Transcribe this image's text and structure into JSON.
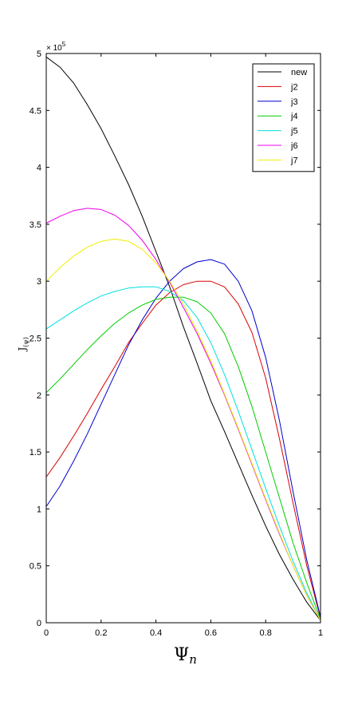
{
  "chart_data": {
    "type": "line",
    "xlabel": "Ψ",
    "xlabel_sub": "n",
    "ylabel": "J",
    "ylabel_sub": "(ψ)",
    "y_multiplier": "× 10",
    "y_exponent": "5",
    "xlim": [
      0,
      1
    ],
    "ylim": [
      0,
      5
    ],
    "x_ticks": [
      0,
      0.2,
      0.4,
      0.6,
      0.8,
      1
    ],
    "x_tick_labels": [
      "0",
      "0.2",
      "0.4",
      "0.6",
      "0.8",
      "1"
    ],
    "y_ticks": [
      0,
      0.5,
      1,
      1.5,
      2,
      2.5,
      3,
      3.5,
      4,
      4.5,
      5
    ],
    "y_tick_labels": [
      "0",
      "0.5",
      "1",
      "1.5",
      "2",
      "2.5",
      "3",
      "3.5",
      "4",
      "4.5",
      "5"
    ],
    "grid": false,
    "legend_position": "top-right",
    "series": [
      {
        "name": "new",
        "color": "#000000",
        "points": [
          [
            0,
            4.97
          ],
          [
            0.05,
            4.88
          ],
          [
            0.1,
            4.74
          ],
          [
            0.15,
            4.55
          ],
          [
            0.2,
            4.34
          ],
          [
            0.25,
            4.1
          ],
          [
            0.3,
            3.85
          ],
          [
            0.35,
            3.57
          ],
          [
            0.4,
            3.26
          ],
          [
            0.45,
            2.95
          ],
          [
            0.5,
            2.6
          ],
          [
            0.55,
            2.28
          ],
          [
            0.6,
            1.95
          ],
          [
            0.65,
            1.68
          ],
          [
            0.7,
            1.4
          ],
          [
            0.75,
            1.12
          ],
          [
            0.8,
            0.85
          ],
          [
            0.85,
            0.6
          ],
          [
            0.9,
            0.38
          ],
          [
            0.95,
            0.18
          ],
          [
            1,
            0.02
          ]
        ]
      },
      {
        "name": "j2",
        "color": "#dd0000",
        "points": [
          [
            0,
            1.28
          ],
          [
            0.05,
            1.45
          ],
          [
            0.1,
            1.64
          ],
          [
            0.15,
            1.84
          ],
          [
            0.2,
            2.05
          ],
          [
            0.25,
            2.25
          ],
          [
            0.3,
            2.46
          ],
          [
            0.35,
            2.63
          ],
          [
            0.4,
            2.79
          ],
          [
            0.45,
            2.9
          ],
          [
            0.5,
            2.97
          ],
          [
            0.55,
            3.0
          ],
          [
            0.6,
            3.0
          ],
          [
            0.65,
            2.95
          ],
          [
            0.7,
            2.8
          ],
          [
            0.75,
            2.55
          ],
          [
            0.8,
            2.15
          ],
          [
            0.85,
            1.62
          ],
          [
            0.9,
            1.05
          ],
          [
            0.95,
            0.5
          ],
          [
            1,
            0.04
          ]
        ]
      },
      {
        "name": "j3",
        "color": "#0000cc",
        "points": [
          [
            0,
            1.02
          ],
          [
            0.05,
            1.2
          ],
          [
            0.1,
            1.42
          ],
          [
            0.15,
            1.66
          ],
          [
            0.2,
            1.92
          ],
          [
            0.25,
            2.18
          ],
          [
            0.3,
            2.44
          ],
          [
            0.35,
            2.66
          ],
          [
            0.4,
            2.85
          ],
          [
            0.45,
            3.0
          ],
          [
            0.5,
            3.11
          ],
          [
            0.55,
            3.17
          ],
          [
            0.6,
            3.19
          ],
          [
            0.65,
            3.15
          ],
          [
            0.7,
            3.0
          ],
          [
            0.75,
            2.74
          ],
          [
            0.8,
            2.33
          ],
          [
            0.85,
            1.78
          ],
          [
            0.9,
            1.15
          ],
          [
            0.95,
            0.55
          ],
          [
            1,
            0.05
          ]
        ]
      },
      {
        "name": "j4",
        "color": "#00cc00",
        "points": [
          [
            0,
            2.02
          ],
          [
            0.05,
            2.14
          ],
          [
            0.1,
            2.27
          ],
          [
            0.15,
            2.4
          ],
          [
            0.2,
            2.52
          ],
          [
            0.25,
            2.63
          ],
          [
            0.3,
            2.72
          ],
          [
            0.35,
            2.79
          ],
          [
            0.4,
            2.84
          ],
          [
            0.45,
            2.86
          ],
          [
            0.5,
            2.86
          ],
          [
            0.55,
            2.82
          ],
          [
            0.6,
            2.72
          ],
          [
            0.65,
            2.54
          ],
          [
            0.7,
            2.25
          ],
          [
            0.75,
            1.9
          ],
          [
            0.8,
            1.5
          ],
          [
            0.85,
            1.1
          ],
          [
            0.9,
            0.7
          ],
          [
            0.95,
            0.35
          ],
          [
            1,
            0.03
          ]
        ]
      },
      {
        "name": "j5",
        "color": "#00e0e0",
        "points": [
          [
            0,
            2.58
          ],
          [
            0.05,
            2.66
          ],
          [
            0.1,
            2.74
          ],
          [
            0.15,
            2.81
          ],
          [
            0.2,
            2.87
          ],
          [
            0.25,
            2.91
          ],
          [
            0.3,
            2.94
          ],
          [
            0.35,
            2.95
          ],
          [
            0.4,
            2.95
          ],
          [
            0.45,
            2.91
          ],
          [
            0.5,
            2.83
          ],
          [
            0.55,
            2.68
          ],
          [
            0.6,
            2.46
          ],
          [
            0.65,
            2.18
          ],
          [
            0.7,
            1.86
          ],
          [
            0.75,
            1.52
          ],
          [
            0.8,
            1.18
          ],
          [
            0.85,
            0.85
          ],
          [
            0.9,
            0.54
          ],
          [
            0.95,
            0.26
          ],
          [
            1,
            0.02
          ]
        ]
      },
      {
        "name": "j6",
        "color": "#ee00ee",
        "points": [
          [
            0,
            3.51
          ],
          [
            0.05,
            3.57
          ],
          [
            0.1,
            3.62
          ],
          [
            0.15,
            3.64
          ],
          [
            0.2,
            3.63
          ],
          [
            0.25,
            3.58
          ],
          [
            0.3,
            3.49
          ],
          [
            0.35,
            3.36
          ],
          [
            0.4,
            3.19
          ],
          [
            0.45,
            2.99
          ],
          [
            0.5,
            2.77
          ],
          [
            0.55,
            2.54
          ],
          [
            0.6,
            2.28
          ],
          [
            0.65,
            2.0
          ],
          [
            0.7,
            1.7
          ],
          [
            0.75,
            1.39
          ],
          [
            0.8,
            1.08
          ],
          [
            0.85,
            0.78
          ],
          [
            0.9,
            0.5
          ],
          [
            0.95,
            0.24
          ],
          [
            1,
            0.02
          ]
        ]
      },
      {
        "name": "j7",
        "color": "#eeee00",
        "points": [
          [
            0,
            3.0
          ],
          [
            0.05,
            3.12
          ],
          [
            0.1,
            3.22
          ],
          [
            0.15,
            3.3
          ],
          [
            0.2,
            3.35
          ],
          [
            0.25,
            3.37
          ],
          [
            0.3,
            3.35
          ],
          [
            0.35,
            3.28
          ],
          [
            0.4,
            3.16
          ],
          [
            0.45,
            3.0
          ],
          [
            0.5,
            2.8
          ],
          [
            0.55,
            2.56
          ],
          [
            0.6,
            2.3
          ],
          [
            0.65,
            2.01
          ],
          [
            0.7,
            1.71
          ],
          [
            0.75,
            1.4
          ],
          [
            0.8,
            1.09
          ],
          [
            0.85,
            0.79
          ],
          [
            0.9,
            0.5
          ],
          [
            0.95,
            0.24
          ],
          [
            1,
            0.02
          ]
        ]
      }
    ]
  }
}
